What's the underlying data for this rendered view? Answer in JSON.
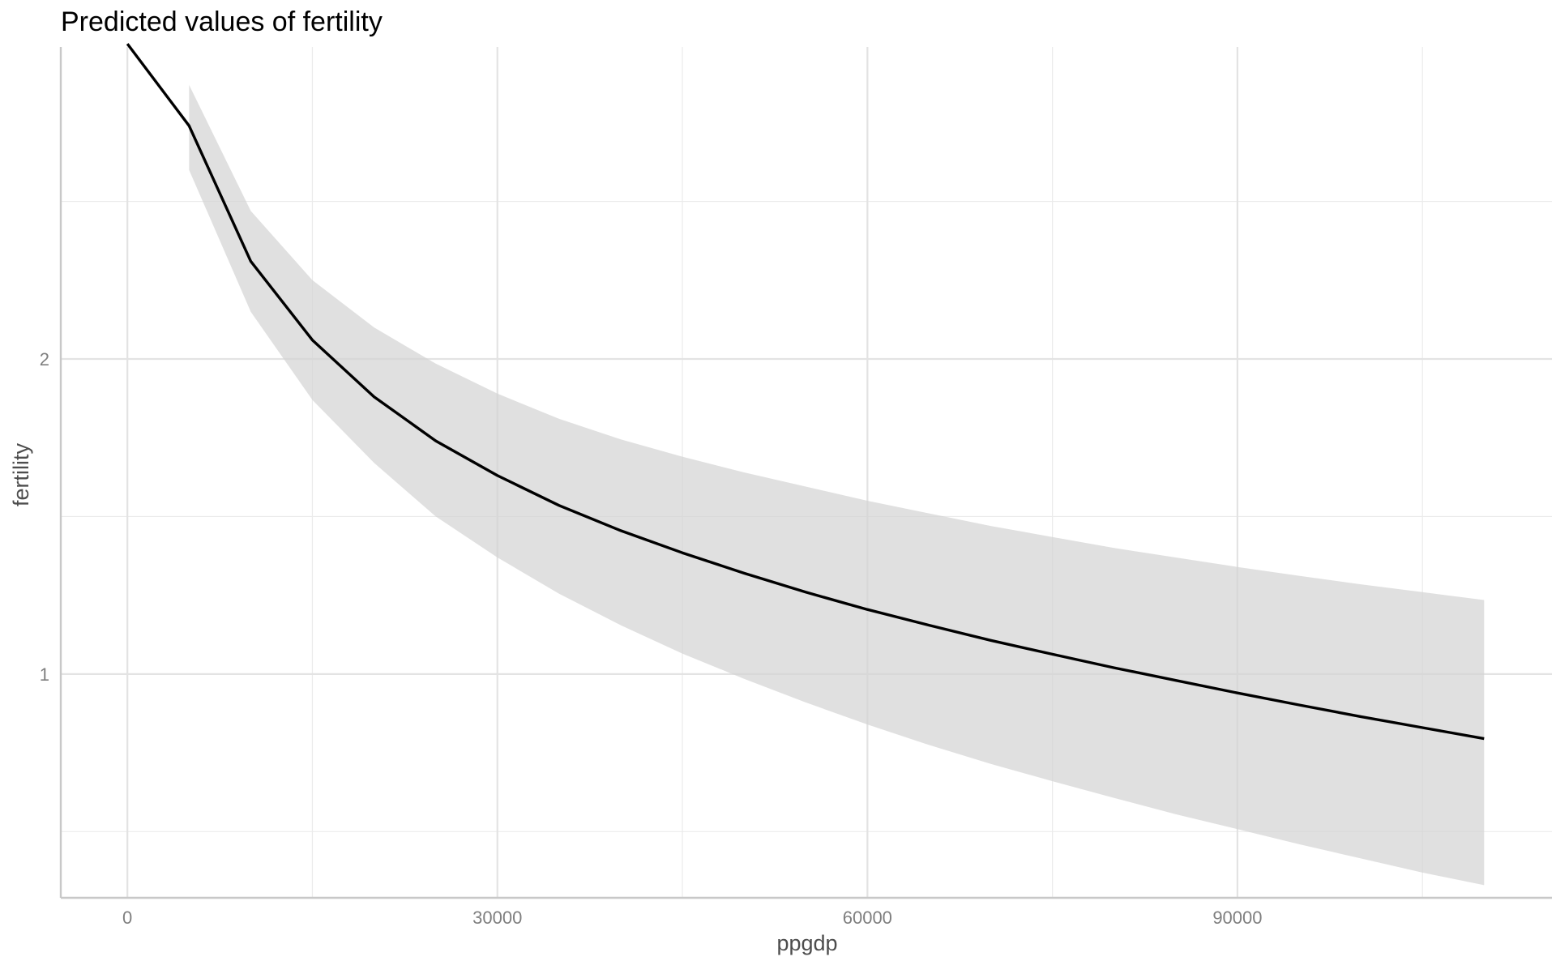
{
  "chart_data": {
    "type": "line",
    "title": "Predicted values of fertility",
    "xlabel": "ppgdp",
    "ylabel": "fertility",
    "x_ticks": [
      0,
      30000,
      60000,
      90000
    ],
    "x_tick_labels": [
      "0",
      "30000",
      "60000",
      "90000"
    ],
    "y_ticks": [
      1,
      2
    ],
    "y_tick_labels": [
      "1",
      "2"
    ],
    "xlim": [
      -5400,
      115500
    ],
    "ylim": [
      0.29,
      2.99
    ],
    "grid": true,
    "series": [
      {
        "x": [
          0,
          5000,
          10000,
          15000,
          20000,
          25000,
          30000,
          35000,
          40000,
          45000,
          50000,
          55000,
          60000,
          65000,
          70000,
          75000,
          80000,
          85000,
          90000,
          95000,
          100000,
          105000,
          110000
        ],
        "values": [
          3.0,
          2.74,
          2.31,
          2.06,
          1.88,
          1.74,
          1.63,
          1.535,
          1.455,
          1.385,
          1.32,
          1.26,
          1.205,
          1.155,
          1.107,
          1.063,
          1.02,
          0.98,
          0.94,
          0.902,
          0.865,
          0.83,
          0.795
        ],
        "ci_lower": [
          null,
          2.6,
          2.15,
          1.87,
          1.67,
          1.5,
          1.37,
          1.255,
          1.155,
          1.065,
          0.985,
          0.91,
          0.84,
          0.775,
          0.715,
          0.66,
          0.607,
          0.555,
          0.508,
          0.46,
          0.415,
          0.37,
          0.33
        ],
        "ci_upper": [
          null,
          2.87,
          2.47,
          2.25,
          2.1,
          1.985,
          1.89,
          1.81,
          1.745,
          1.69,
          1.64,
          1.595,
          1.55,
          1.51,
          1.47,
          1.435,
          1.4,
          1.37,
          1.34,
          1.312,
          1.285,
          1.26,
          1.235
        ]
      }
    ]
  }
}
